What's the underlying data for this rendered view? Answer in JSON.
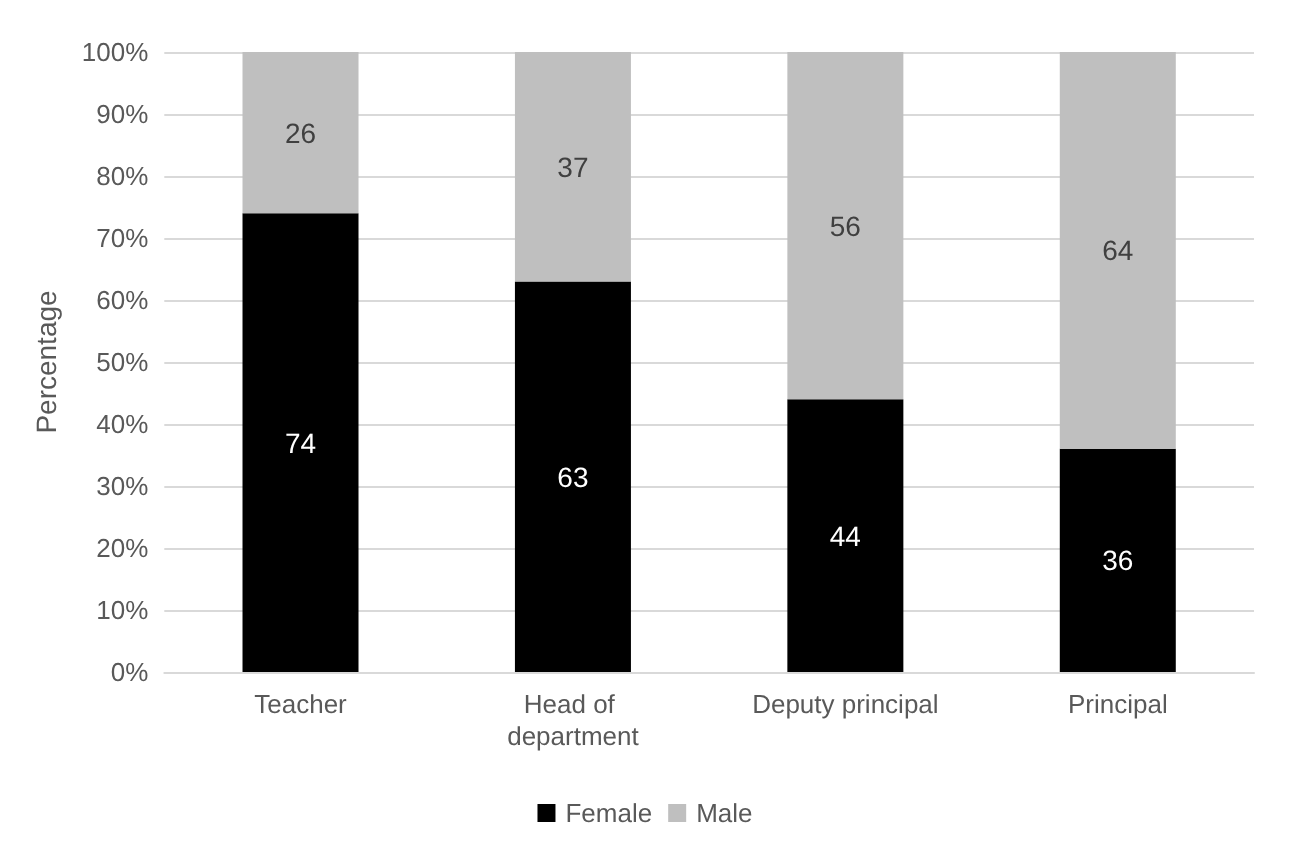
{
  "chart_data": {
    "type": "bar",
    "stacked": true,
    "ylabel": "Percentage",
    "categories": [
      "Teacher",
      "Head of department",
      "Deputy principal",
      "Principal"
    ],
    "series": [
      {
        "name": "Female",
        "color": "#000000",
        "values": [
          74,
          63,
          44,
          36
        ]
      },
      {
        "name": "Male",
        "color": "#bfbfbf",
        "values": [
          26,
          37,
          56,
          64
        ]
      }
    ],
    "ylim": [
      0,
      100
    ],
    "yticks": [
      {
        "value": 0,
        "label": "0%"
      },
      {
        "value": 10,
        "label": "10%"
      },
      {
        "value": 20,
        "label": "20%"
      },
      {
        "value": 30,
        "label": "30%"
      },
      {
        "value": 40,
        "label": "40%"
      },
      {
        "value": 50,
        "label": "50%"
      },
      {
        "value": 60,
        "label": "60%"
      },
      {
        "value": 70,
        "label": "70%"
      },
      {
        "value": 80,
        "label": "80%"
      },
      {
        "value": 90,
        "label": "90%"
      },
      {
        "value": 100,
        "label": "100%"
      }
    ],
    "grid": "y",
    "legend": "bottom",
    "data_labels": true
  }
}
